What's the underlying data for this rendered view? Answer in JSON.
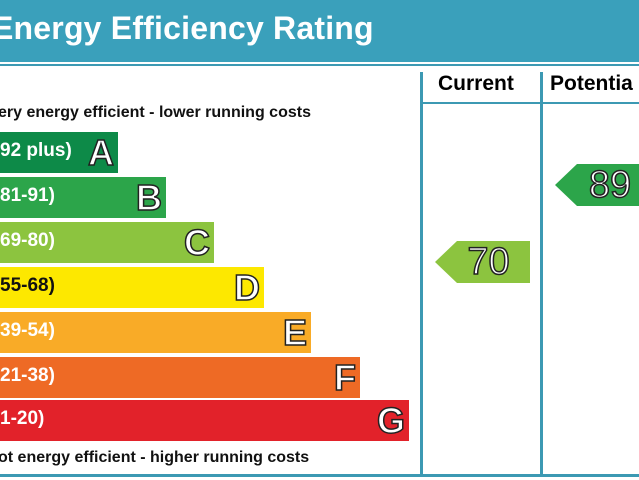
{
  "title": "Energy Efficiency Rating",
  "columns": {
    "current": "Current",
    "potential": "Potentia"
  },
  "notes": {
    "top": "ery energy efficient - lower running costs",
    "bottom": "ot energy efficient - higher running costs"
  },
  "bands": [
    {
      "range": "92 plus)",
      "letter": "A",
      "color": "#0d8a48"
    },
    {
      "range": "81-91)",
      "letter": "B",
      "color": "#2ca54a"
    },
    {
      "range": "69-80)",
      "letter": "C",
      "color": "#8cc43f"
    },
    {
      "range": "55-68)",
      "letter": "D",
      "color": "#fde800"
    },
    {
      "range": "39-54)",
      "letter": "E",
      "color": "#f9ab27"
    },
    {
      "range": "21-38)",
      "letter": "F",
      "color": "#ee6a25"
    },
    {
      "range": "1-20)",
      "letter": "G",
      "color": "#e2222a"
    }
  ],
  "ratings": {
    "current": {
      "value": "70",
      "band": "C",
      "color": "#8cc43f"
    },
    "potential": {
      "value": "89",
      "band": "B",
      "color": "#2ca54a"
    }
  }
}
